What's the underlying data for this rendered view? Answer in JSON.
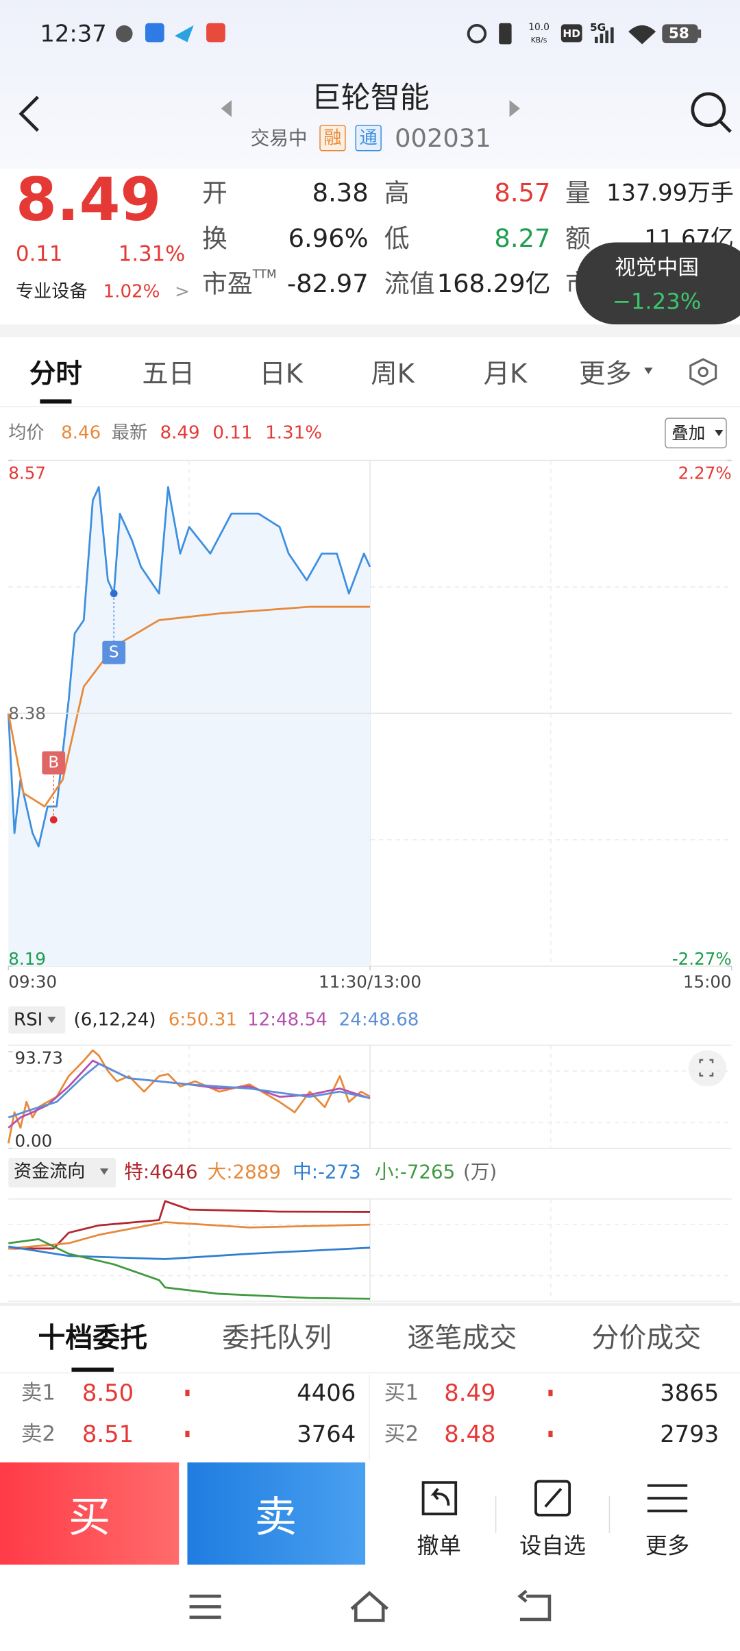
{
  "status_bar": {
    "time": "12:37",
    "speed": "10.0",
    "speed_unit": "KB/s",
    "hd": "HD",
    "network": "5G",
    "battery": "58"
  },
  "header": {
    "title": "巨轮智能",
    "state": "交易中",
    "badges": [
      "融",
      "通"
    ],
    "code": "002031"
  },
  "quote": {
    "price": "8.49",
    "change": "0.11",
    "change_pct": "1.31%",
    "sector": "专业设备",
    "sector_pct": "1.02%",
    "sector_arrow": ">",
    "stats": [
      [
        {
          "label": "开",
          "value": "8.38"
        },
        {
          "label": "高",
          "value": "8.57",
          "color": "#e53935"
        },
        {
          "label": "量",
          "value": "137.99万手"
        }
      ],
      [
        {
          "label": "换",
          "value": "6.96%"
        },
        {
          "label": "低",
          "value": "8.27",
          "color": "#1e9e50"
        },
        {
          "label": "额",
          "value": "11.67亿"
        }
      ],
      [
        {
          "label": "市盈",
          "sup": "TTM",
          "value": "-82.97"
        },
        {
          "label": "流值",
          "value": "168.29亿"
        },
        {
          "label": "市"
        }
      ]
    ]
  },
  "popup": {
    "name": "视觉中国",
    "change": "−1.23%"
  },
  "tabs": [
    "分时",
    "五日",
    "日K",
    "周K",
    "月K",
    "更多"
  ],
  "info": {
    "avg_label": "均价",
    "avg": "8.46",
    "last_label": "最新",
    "last": "8.49",
    "change": "0.11",
    "change_pct": "1.31%",
    "overlay_button": "叠加"
  },
  "intraday": {
    "type": "line",
    "xlim": [
      0,
      240
    ],
    "ylim": [
      8.19,
      8.57
    ],
    "yticks": [
      8.19,
      8.38,
      8.57
    ],
    "pct_ticks": [
      {
        "value": 8.57,
        "label": "2.27%"
      },
      {
        "value": 8.19,
        "label": "-2.27%"
      }
    ],
    "xticks": [
      {
        "value": 0,
        "label": "09:30"
      },
      {
        "value": 120,
        "label": "11:30/13:00"
      },
      {
        "value": 240,
        "label": "15:00"
      }
    ],
    "series": [
      {
        "color": "#3d8fe0",
        "fill": "#eef5fd",
        "x": [
          0,
          2,
          4,
          8,
          10,
          13,
          16,
          20,
          22,
          25,
          28,
          30,
          33,
          35,
          37,
          41,
          44,
          50,
          53,
          57,
          60,
          67,
          74,
          83,
          90,
          93,
          99,
          104,
          109,
          113,
          118,
          120
        ],
        "values": [
          8.38,
          8.29,
          8.33,
          8.29,
          8.28,
          8.31,
          8.31,
          8.39,
          8.44,
          8.45,
          8.54,
          8.55,
          8.48,
          8.47,
          8.53,
          8.51,
          8.49,
          8.47,
          8.55,
          8.5,
          8.52,
          8.5,
          8.53,
          8.53,
          8.52,
          8.5,
          8.48,
          8.5,
          8.5,
          8.47,
          8.5,
          8.49
        ]
      },
      {
        "color": "#e8893a",
        "x": [
          0,
          5,
          12,
          18,
          25,
          35,
          50,
          70,
          100,
          120
        ],
        "values": [
          8.38,
          8.32,
          8.31,
          8.33,
          8.4,
          8.43,
          8.45,
          8.455,
          8.46,
          8.46
        ]
      }
    ],
    "trades": [
      {
        "label": "B",
        "x": 15,
        "price": 8.3,
        "color": "#e06666"
      },
      {
        "label": "S",
        "x": 35,
        "price": 8.47,
        "color": "#5b8fe0"
      }
    ]
  },
  "rsi": {
    "type": "line",
    "indicator": "RSI",
    "params": "(6,12,24)",
    "readings": [
      "6:50.31",
      "12:48.54",
      "24:48.68"
    ],
    "xlim": [
      0,
      240
    ],
    "ylim": [
      0,
      100
    ],
    "yticks": [
      93.73,
      {
        "value": 0,
        "label": "0.00"
      }
    ],
    "series": [
      {
        "color": "#e8893a",
        "x": [
          0,
          2,
          4,
          6,
          8,
          10,
          13,
          16,
          20,
          25,
          28,
          30,
          33,
          36,
          40,
          45,
          50,
          53,
          57,
          62,
          70,
          80,
          90,
          95,
          100,
          105,
          110,
          113,
          117,
          120
        ],
        "values": [
          5,
          35,
          20,
          45,
          30,
          40,
          45,
          50,
          70,
          85,
          95,
          90,
          75,
          65,
          70,
          55,
          70,
          72,
          60,
          65,
          55,
          62,
          45,
          35,
          55,
          40,
          70,
          45,
          55,
          50.31
        ]
      },
      {
        "color": "#b44fb0",
        "x": [
          0,
          4,
          8,
          13,
          20,
          28,
          33,
          40,
          50,
          60,
          70,
          80,
          90,
          100,
          110,
          120
        ],
        "values": [
          20,
          30,
          35,
          42,
          60,
          85,
          78,
          68,
          65,
          62,
          58,
          60,
          50,
          52,
          58,
          48.54
        ]
      },
      {
        "color": "#5a8fd6",
        "x": [
          0,
          8,
          16,
          25,
          30,
          40,
          50,
          60,
          80,
          100,
          110,
          120
        ],
        "values": [
          30,
          38,
          45,
          70,
          82,
          68,
          65,
          62,
          58,
          50,
          55,
          48.68
        ]
      }
    ]
  },
  "flow": {
    "type": "line",
    "title": "资金流向",
    "readings": [
      "特:4646",
      "大:2889",
      "中:-273",
      "小:-7265"
    ],
    "unit": "(万)",
    "xlim": [
      0,
      240
    ],
    "ylim": [
      -7600,
      6400
    ],
    "series": [
      {
        "color": "#b3262e",
        "x": [
          0,
          15,
          20,
          30,
          50,
          52,
          60,
          90,
          120
        ],
        "values": [
          -380,
          -380,
          1780,
          2790,
          3510,
          6110,
          4960,
          4670,
          4646
        ]
      },
      {
        "color": "#e8893a",
        "x": [
          0,
          20,
          30,
          52,
          80,
          120
        ],
        "values": [
          -380,
          340,
          1490,
          3230,
          2500,
          2889
        ]
      },
      {
        "color": "#2f7fd0",
        "x": [
          0,
          20,
          52,
          80,
          120
        ],
        "values": [
          -100,
          -1390,
          -1830,
          -1100,
          -273
        ]
      },
      {
        "color": "#3f9a3f",
        "x": [
          0,
          10,
          20,
          35,
          50,
          52,
          70,
          100,
          120
        ],
        "values": [
          340,
          900,
          -1100,
          -2550,
          -4710,
          -5720,
          -6590,
          -7160,
          -7265
        ]
      }
    ]
  },
  "order_tabs": [
    "十档委托",
    "委托队列",
    "逐笔成交",
    "分价成交"
  ],
  "order_book": {
    "sell": [
      [
        "卖1",
        "8.50",
        "4406"
      ],
      [
        "卖2",
        "8.51",
        "3764"
      ]
    ],
    "buy": [
      [
        "买1",
        "8.49",
        "3865"
      ],
      [
        "买2",
        "8.48",
        "2793"
      ]
    ]
  },
  "actions": {
    "buy": "买",
    "sell": "卖",
    "tools": [
      "撤单",
      "设自选",
      "更多"
    ]
  }
}
